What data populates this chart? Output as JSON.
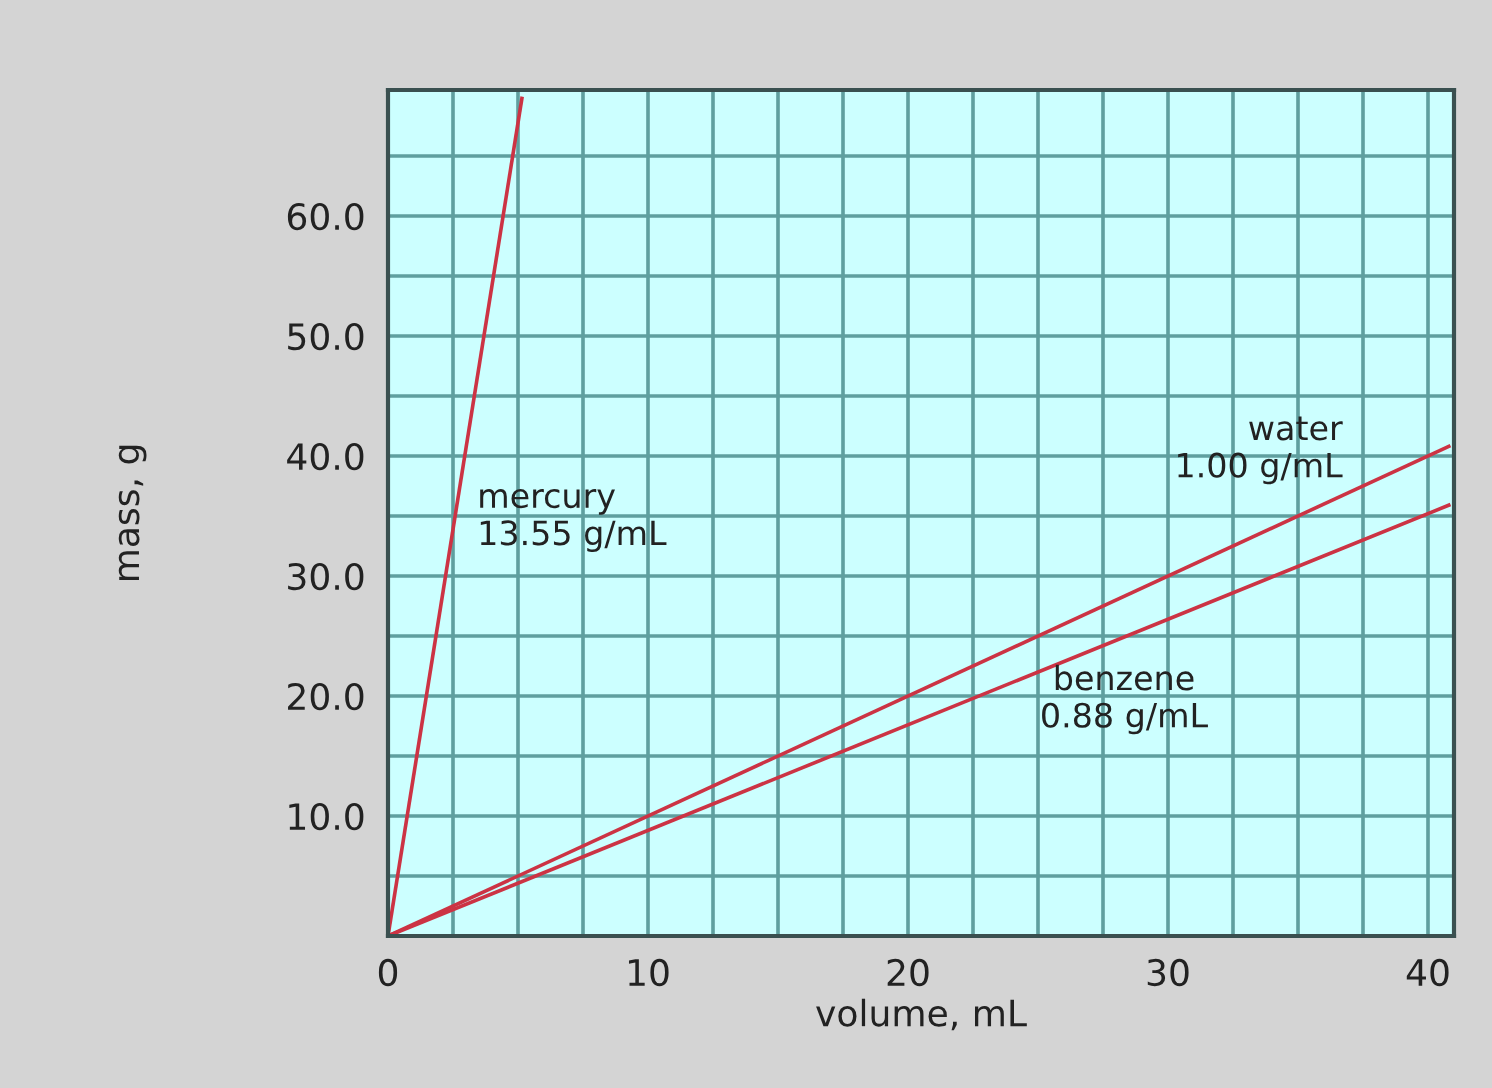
{
  "chart_data": {
    "type": "line",
    "xlabel": "volume, mL",
    "ylabel": "mass, g",
    "series": [
      {
        "name": "mercury\n13.55 g/mL",
        "x": [
          0,
          5.15
        ],
        "values": [
          0,
          69.8
        ],
        "color": "#cc3344"
      },
      {
        "name": "water\n1.00 g/mL",
        "x": [
          0,
          40.8
        ],
        "values": [
          0,
          40.8
        ],
        "color": "#cc3344"
      },
      {
        "name": "benzene\n0.88 g/mL",
        "x": [
          0,
          40.8
        ],
        "values": [
          0,
          35.9
        ],
        "color": "#cc3344"
      }
    ],
    "xlim": [
      0,
      41
    ],
    "ylim": [
      0,
      70.5
    ],
    "xticks": [
      0,
      {
        "value": 2.5,
        "label": null
      },
      {
        "value": 5,
        "label": null
      },
      {
        "value": 7.5,
        "label": null
      },
      10,
      {
        "value": 12.5,
        "label": null
      },
      {
        "value": 15,
        "label": null
      },
      {
        "value": 17.5,
        "label": null
      },
      20,
      {
        "value": 22.5,
        "label": null
      },
      {
        "value": 25,
        "label": null
      },
      {
        "value": 27.5,
        "label": null
      },
      30,
      {
        "value": 32.5,
        "label": null
      },
      {
        "value": 35,
        "label": null
      },
      {
        "value": 37.5,
        "label": null
      },
      40
    ],
    "yticks": [
      {
        "value": 5,
        "label": null
      },
      {
        "value": 10,
        "label": "10.0"
      },
      {
        "value": 15,
        "label": null
      },
      {
        "value": 20,
        "label": "20.0"
      },
      {
        "value": 25,
        "label": null
      },
      {
        "value": 30,
        "label": "30.0"
      },
      {
        "value": 35,
        "label": null
      },
      {
        "value": 40,
        "label": "40.0"
      },
      {
        "value": 45,
        "label": null
      },
      {
        "value": 50,
        "label": "50.0"
      },
      {
        "value": 55,
        "label": null
      },
      {
        "value": 60,
        "label": "60.0"
      },
      {
        "value": 65,
        "label": null
      }
    ],
    "grid": true,
    "line_style": "solid"
  }
}
